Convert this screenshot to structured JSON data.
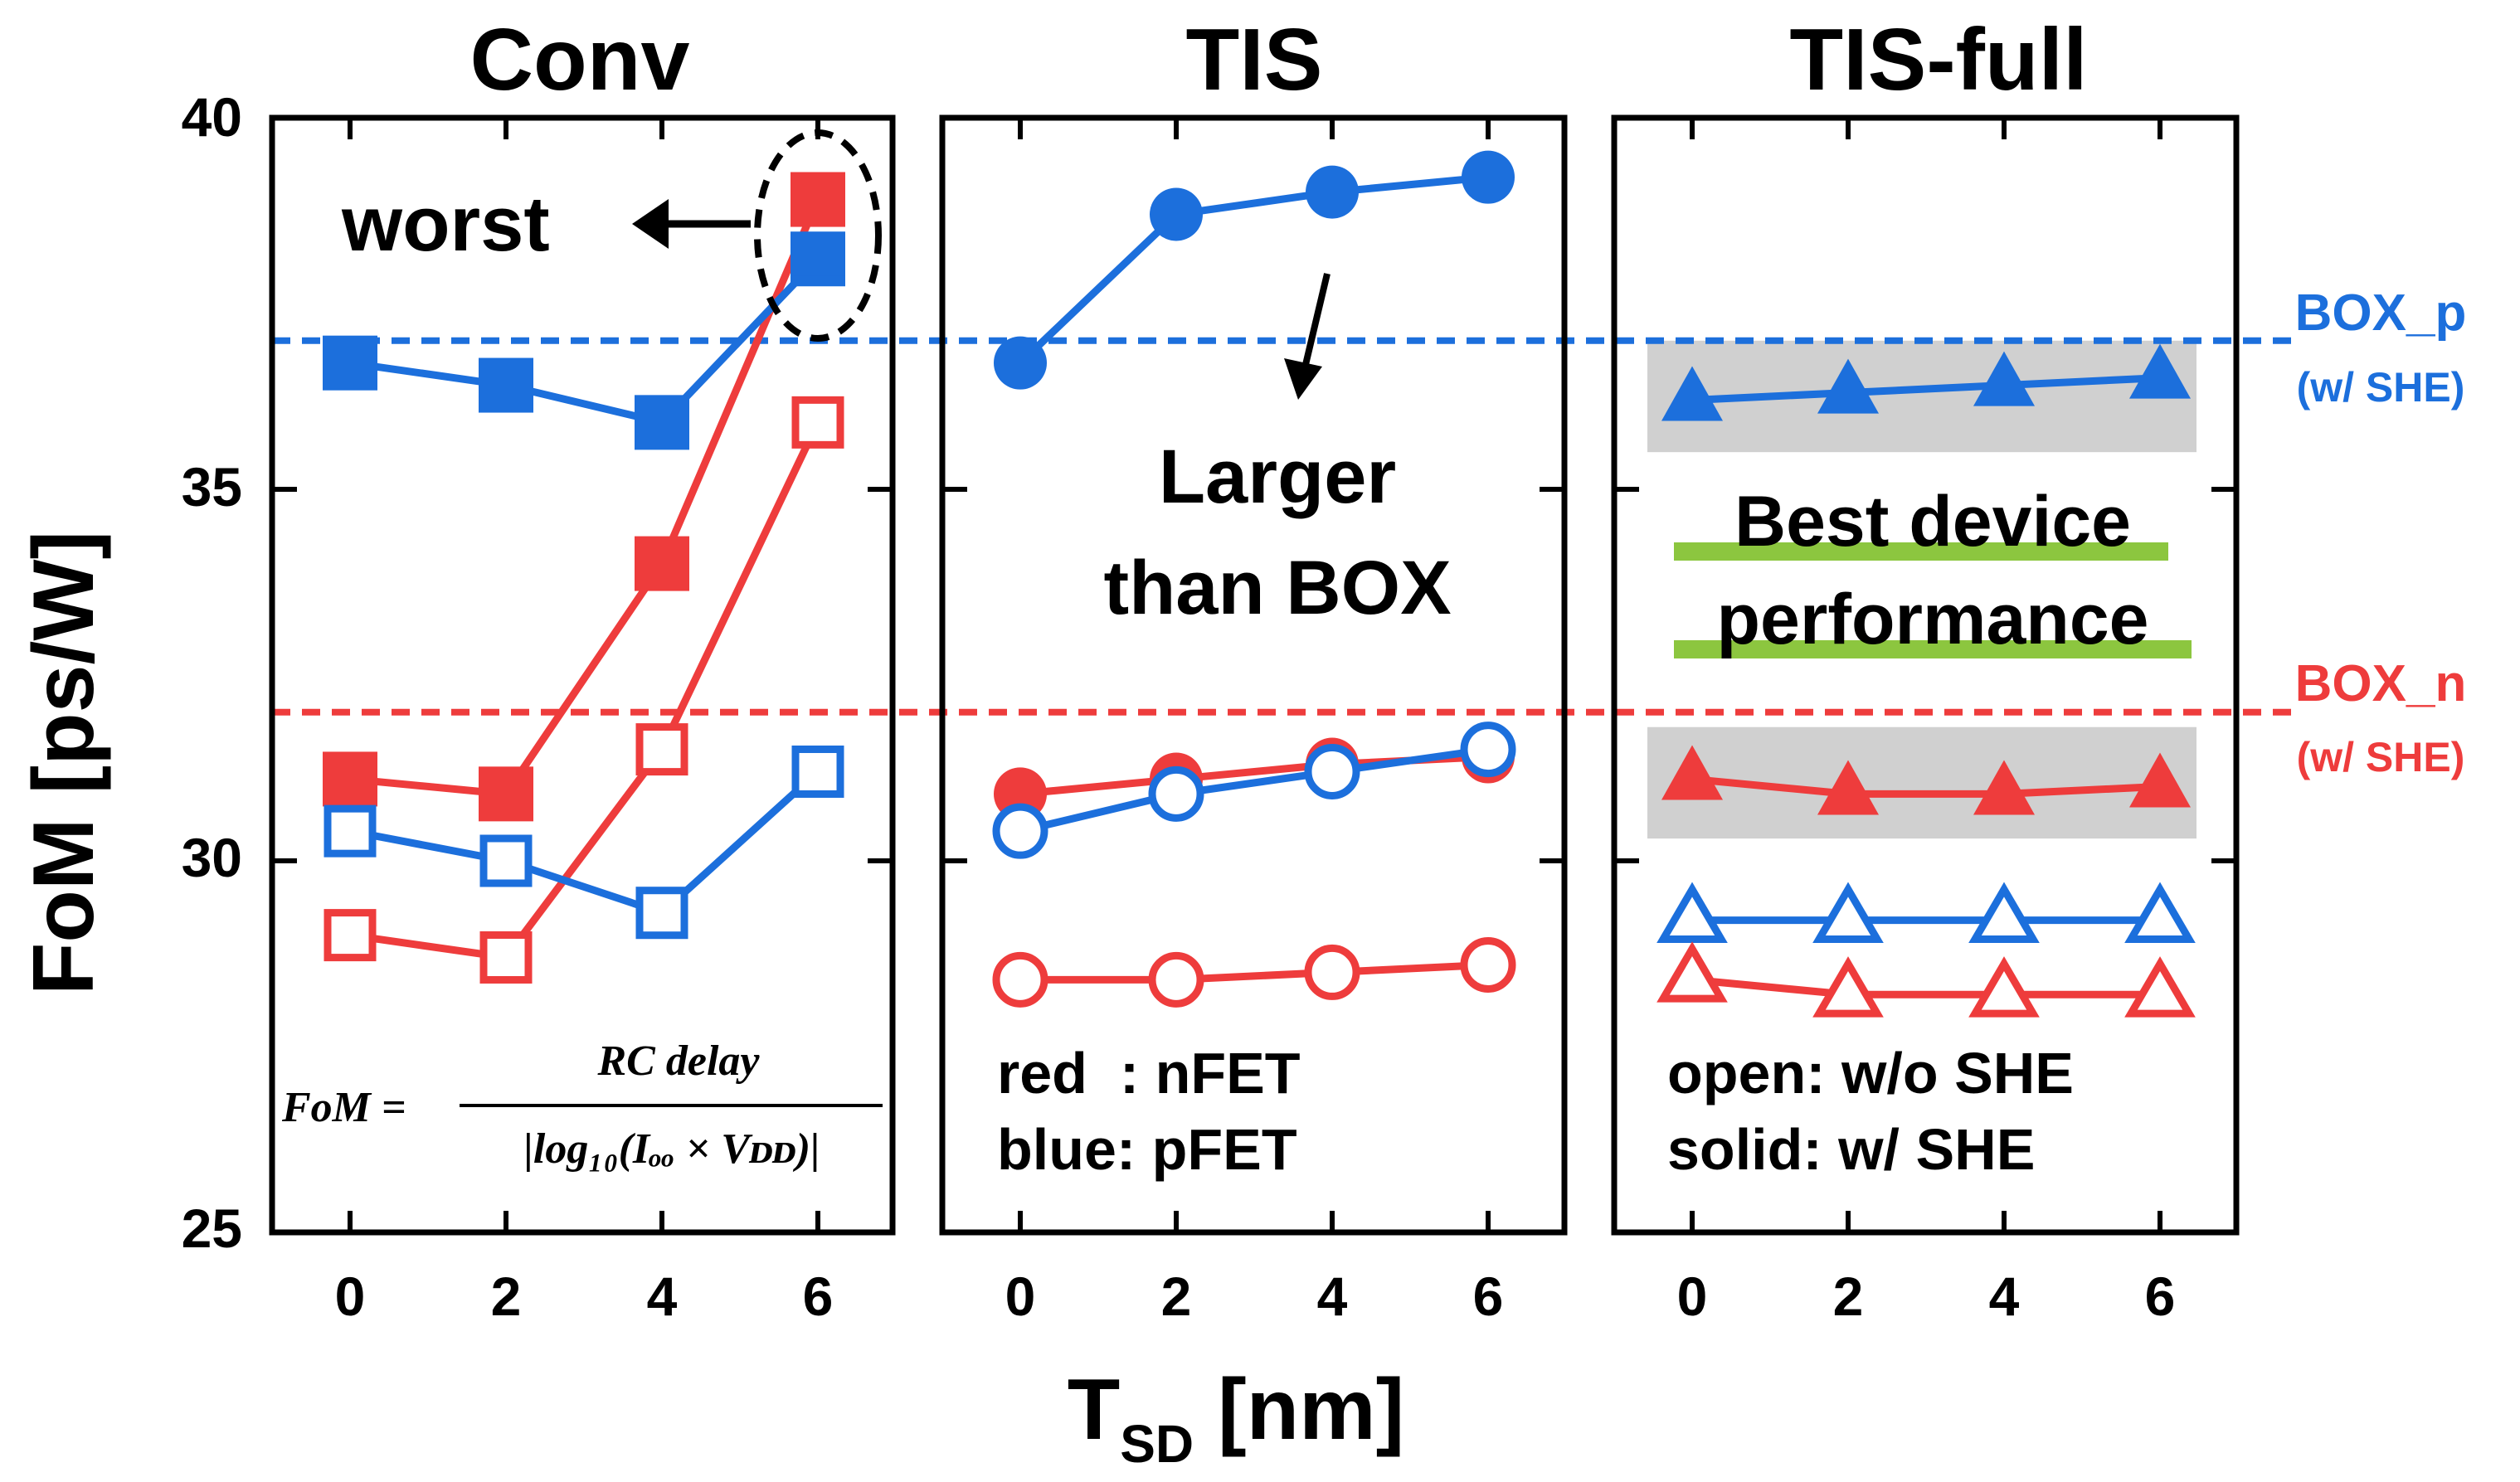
{
  "colors": {
    "nfet": "#ee3c3c",
    "pfet": "#1c6fdc",
    "green": "#8cc63f",
    "shade": "#d0d0d0"
  },
  "chart_data": {
    "type": "line",
    "xlabel": "T",
    "xlabel_sub": "SD",
    "xlabel_unit": " [nm]",
    "ylabel": "FoM [ps/W]",
    "ylim": [
      25,
      40
    ],
    "yticks": [
      25,
      30,
      35,
      40
    ],
    "x": [
      0,
      2,
      4,
      6
    ],
    "reference_lines": [
      {
        "name": "BOX_p",
        "sub": "(w/ SHE)",
        "value": 37.0,
        "color": "pfet"
      },
      {
        "name": "BOX_n",
        "sub": "(w/ SHE)",
        "value": 32.0,
        "color": "nfet"
      }
    ],
    "panels": [
      {
        "title": "Conv",
        "series": [
          {
            "name": "nFET w/ SHE",
            "marker": "square",
            "filled": true,
            "color": "nfet",
            "values": [
              31.1,
              30.9,
              34.0,
              38.9
            ]
          },
          {
            "name": "pFET w/ SHE",
            "marker": "square",
            "filled": true,
            "color": "pfet",
            "values": [
              36.7,
              36.4,
              35.9,
              38.1
            ]
          },
          {
            "name": "nFET w/o SHE",
            "marker": "square",
            "filled": false,
            "color": "nfet",
            "values": [
              29.0,
              28.7,
              31.5,
              35.9
            ]
          },
          {
            "name": "pFET w/o SHE",
            "marker": "square",
            "filled": false,
            "color": "pfet",
            "values": [
              30.4,
              30.0,
              29.3,
              31.2
            ]
          }
        ],
        "annotations": {
          "worst": "worst",
          "formula_lhs": "FoM =",
          "formula_num": "RC delay",
          "formula_den": "|log₁₀(Iₒₒ × Vᴅᴅ)|"
        }
      },
      {
        "title": "TIS",
        "series": [
          {
            "name": "pFET w/ SHE",
            "marker": "circle",
            "filled": true,
            "color": "pfet",
            "values": [
              36.7,
              38.7,
              39.0,
              39.2
            ]
          },
          {
            "name": "nFET w/ SHE",
            "marker": "circle",
            "filled": true,
            "color": "nfet",
            "values": [
              30.9,
              31.1,
              31.3,
              31.4
            ]
          },
          {
            "name": "pFET w/o SHE",
            "marker": "circle",
            "filled": false,
            "color": "pfet",
            "values": [
              30.4,
              30.9,
              31.2,
              31.5
            ]
          },
          {
            "name": "nFET w/o SHE",
            "marker": "circle",
            "filled": false,
            "color": "nfet",
            "values": [
              28.4,
              28.4,
              28.5,
              28.6
            ]
          }
        ],
        "annotations": {
          "larger_line1": "Larger",
          "larger_line2": "than BOX",
          "legend_red": "red  : nFET",
          "legend_blue": "blue: pFET"
        }
      },
      {
        "title": "TIS-full",
        "series": [
          {
            "name": "pFET w/ SHE",
            "marker": "triangle",
            "filled": true,
            "color": "pfet",
            "values": [
              36.2,
              36.3,
              36.4,
              36.5
            ]
          },
          {
            "name": "nFET w/ SHE",
            "marker": "triangle",
            "filled": true,
            "color": "nfet",
            "values": [
              31.1,
              30.9,
              30.9,
              31.0
            ]
          },
          {
            "name": "pFET w/o SHE",
            "marker": "triangle",
            "filled": false,
            "color": "pfet",
            "values": [
              29.2,
              29.2,
              29.2,
              29.2
            ]
          },
          {
            "name": "nFET w/o SHE",
            "marker": "triangle",
            "filled": false,
            "color": "nfet",
            "values": [
              28.4,
              28.2,
              28.2,
              28.2
            ]
          }
        ],
        "shaded_bands": [
          {
            "y_low": 35.5,
            "y_high": 37.0
          },
          {
            "y_low": 30.3,
            "y_high": 31.8
          }
        ],
        "annotations": {
          "best_line1": "Best device",
          "best_line2": "performance",
          "legend_open": "open: w/o SHE",
          "legend_solid": "solid: w/ SHE"
        }
      }
    ]
  }
}
